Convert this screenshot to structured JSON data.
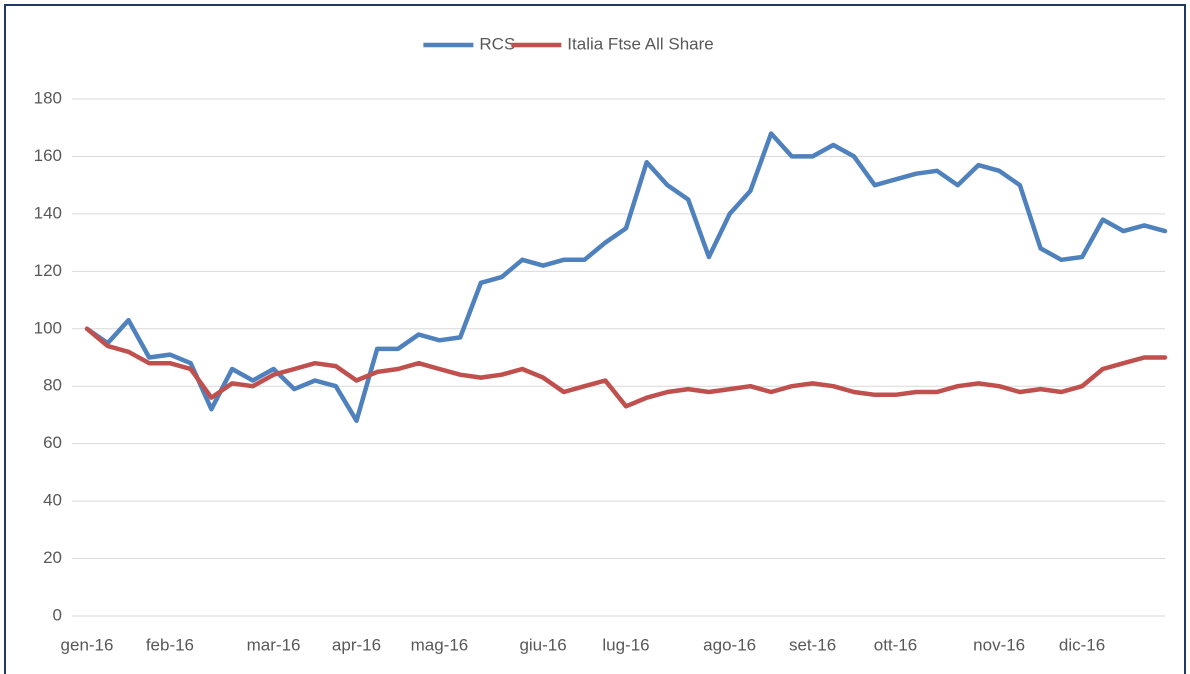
{
  "chart_data": {
    "type": "line",
    "categories": [
      "gen-16",
      null,
      null,
      null,
      "feb-16",
      null,
      null,
      null,
      null,
      "mar-16",
      null,
      null,
      null,
      "apr-16",
      null,
      null,
      null,
      "mag-16",
      null,
      null,
      null,
      null,
      "giu-16",
      null,
      null,
      null,
      "lug-16",
      null,
      null,
      null,
      null,
      "ago-16",
      null,
      null,
      null,
      "set-16",
      null,
      null,
      null,
      "ott-16",
      null,
      null,
      null,
      null,
      "nov-16",
      null,
      null,
      null,
      "dic-16",
      null,
      null,
      null,
      null
    ],
    "series": [
      {
        "name": "RCS",
        "color": "#4f81bd",
        "values": [
          100,
          95,
          103,
          90,
          91,
          88,
          72,
          86,
          82,
          86,
          79,
          82,
          80,
          68,
          93,
          93,
          98,
          96,
          97,
          116,
          118,
          124,
          122,
          124,
          124,
          130,
          135,
          158,
          150,
          145,
          125,
          140,
          148,
          168,
          160,
          160,
          164,
          160,
          150,
          152,
          154,
          155,
          150,
          157,
          155,
          150,
          128,
          124,
          125,
          138,
          134,
          136,
          134
        ]
      },
      {
        "name": "Italia Ftse All Share",
        "color": "#c0504d",
        "values": [
          100,
          94,
          92,
          88,
          88,
          86,
          76,
          81,
          80,
          84,
          86,
          88,
          87,
          82,
          85,
          86,
          88,
          86,
          84,
          83,
          84,
          86,
          83,
          78,
          80,
          82,
          73,
          76,
          78,
          79,
          78,
          79,
          80,
          78,
          80,
          81,
          80,
          78,
          77,
          77,
          78,
          78,
          80,
          81,
          80,
          78,
          79,
          78,
          80,
          86,
          88,
          90,
          90
        ]
      }
    ],
    "ylim": [
      0,
      180
    ],
    "yticks": [
      0,
      20,
      40,
      60,
      80,
      100,
      120,
      140,
      160,
      180
    ],
    "grid": true,
    "legend": "top"
  }
}
